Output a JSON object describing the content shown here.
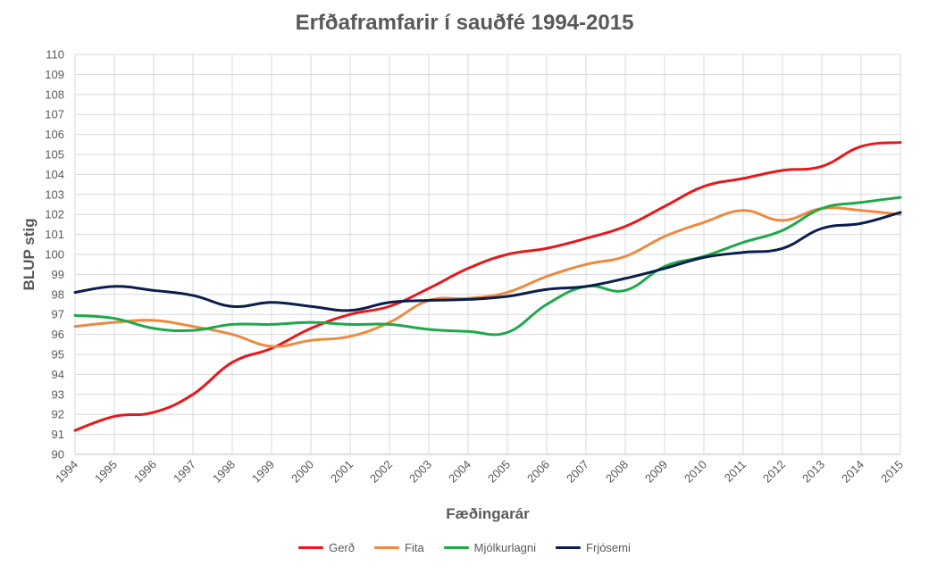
{
  "chart_data": {
    "type": "line",
    "title": "Erfðaframfarir í sauðfé 1994-2015",
    "xlabel": "Fæðingarár",
    "ylabel": "BLUP stig",
    "ylim": [
      90,
      110
    ],
    "yticks": [
      90,
      91,
      92,
      93,
      94,
      95,
      96,
      97,
      98,
      99,
      100,
      101,
      102,
      103,
      104,
      105,
      106,
      107,
      108,
      109,
      110
    ],
    "grid": true,
    "legend_position": "bottom",
    "categories": [
      "1994",
      "1995",
      "1996",
      "1997",
      "1998",
      "1999",
      "2000",
      "2001",
      "2002",
      "2003",
      "2004",
      "2005",
      "2006",
      "2007",
      "2008",
      "2009",
      "2010",
      "2011",
      "2012",
      "2013",
      "2014",
      "2015"
    ],
    "series": [
      {
        "name": "Gerð",
        "color": "#e41a1c",
        "values": [
          91.2,
          91.9,
          92.1,
          93.0,
          94.6,
          95.3,
          96.3,
          97.0,
          97.4,
          98.3,
          99.3,
          100.0,
          100.3,
          100.8,
          101.4,
          102.4,
          103.4,
          103.8,
          104.2,
          104.4,
          105.4,
          105.6
        ]
      },
      {
        "name": "Fita",
        "color": "#ed8a3f",
        "values": [
          96.4,
          96.6,
          96.7,
          96.4,
          96.0,
          95.4,
          95.7,
          95.9,
          96.6,
          97.7,
          97.8,
          98.1,
          98.9,
          99.5,
          99.9,
          100.9,
          101.6,
          102.2,
          101.7,
          102.3,
          102.2,
          102.0
        ]
      },
      {
        "name": "Mjólkurlagni",
        "color": "#1ea84a",
        "values": [
          96.95,
          96.8,
          96.3,
          96.2,
          96.5,
          96.5,
          96.6,
          96.5,
          96.5,
          96.25,
          96.15,
          96.1,
          97.5,
          98.4,
          98.2,
          99.4,
          99.9,
          100.6,
          101.2,
          102.3,
          102.6,
          102.85
        ]
      },
      {
        "name": "Frjósemi",
        "color": "#0b1d4f",
        "values": [
          98.1,
          98.4,
          98.2,
          97.95,
          97.4,
          97.6,
          97.4,
          97.2,
          97.6,
          97.7,
          97.75,
          97.9,
          98.25,
          98.4,
          98.8,
          99.3,
          99.85,
          100.1,
          100.3,
          101.3,
          101.55,
          102.1
        ]
      }
    ]
  }
}
